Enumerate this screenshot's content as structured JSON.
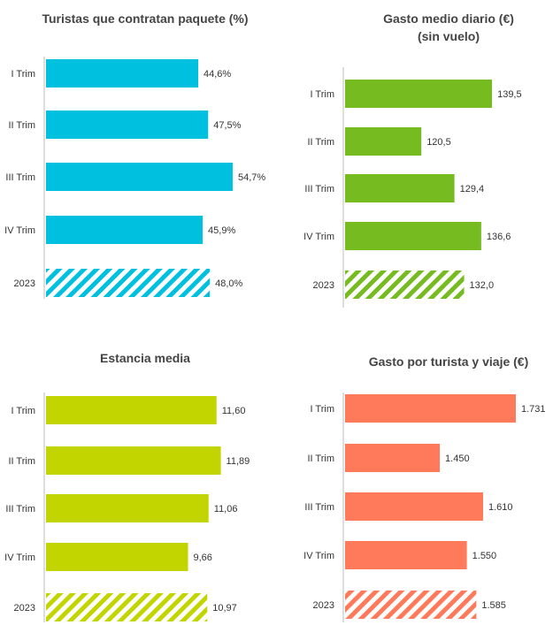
{
  "chart_data": [
    {
      "type": "bar",
      "orientation": "horizontal",
      "title": "Turistas que contratan paquete (%)",
      "subtitle": "",
      "color": "#00C0E0",
      "categories": [
        "I Trim",
        "II Trim",
        "III Trim",
        "IV Trim",
        "2023"
      ],
      "values": [
        44.6,
        47.5,
        54.7,
        45.9,
        48.0
      ],
      "value_labels": [
        "44,6%",
        "47,5%",
        "54,7%",
        "45,9%",
        "48,0%"
      ],
      "xlim": [
        0,
        56
      ],
      "hatched_category": "2023",
      "grid": false
    },
    {
      "type": "bar",
      "orientation": "horizontal",
      "title": "Gasto medio diario (€)",
      "subtitle": "(sin vuelo)",
      "color": "#76BC21",
      "categories": [
        "I Trim",
        "II Trim",
        "III Trim",
        "IV Trim",
        "2023"
      ],
      "values": [
        139.5,
        120.5,
        129.4,
        136.6,
        132.0
      ],
      "value_labels": [
        "139,5",
        "120,5",
        "129,4",
        "136,6",
        "132,0"
      ],
      "xlim": [
        100,
        144
      ],
      "hatched_category": "2023",
      "grid": false
    },
    {
      "type": "bar",
      "orientation": "horizontal",
      "title": "Estancia media",
      "subtitle": "",
      "color": "#C3D500",
      "categories": [
        "I Trim",
        "II Trim",
        "III Trim",
        "IV Trim",
        "2023"
      ],
      "values": [
        11.6,
        11.89,
        11.06,
        9.66,
        10.97
      ],
      "value_labels": [
        "11,60",
        "11,89",
        "11,06",
        "9,66",
        "10,97"
      ],
      "xlim": [
        0,
        13
      ],
      "hatched_category": "2023",
      "grid": false
    },
    {
      "type": "bar",
      "orientation": "horizontal",
      "title": "Gasto por turista y viaje (€)",
      "subtitle": "",
      "color": "#FF7A5A",
      "categories": [
        "I Trim",
        "II Trim",
        "III Trim",
        "IV Trim",
        "2023"
      ],
      "values": [
        1731,
        1450,
        1610,
        1550,
        1585
      ],
      "value_labels": [
        "1.731",
        "1.450",
        "1.610",
        "1.550",
        "1.585"
      ],
      "xlim": [
        1100,
        1780
      ],
      "hatched_category": "2023",
      "grid": false
    }
  ]
}
